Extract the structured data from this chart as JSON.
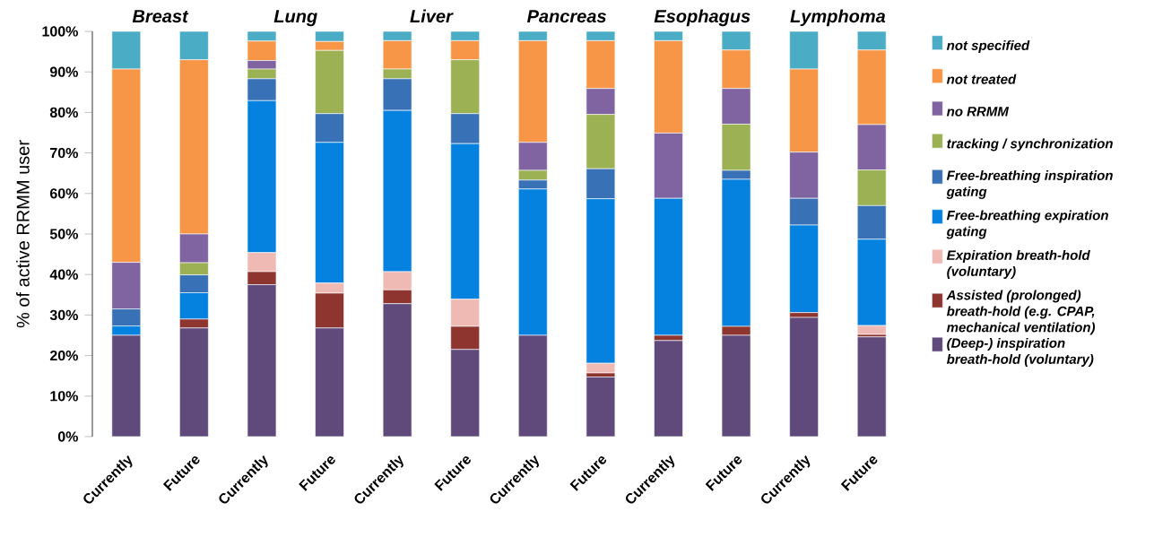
{
  "chart_data": {
    "type": "bar",
    "stacked": true,
    "categories": [
      "Currently",
      "Future",
      "Currently",
      "Future",
      "Currently",
      "Future",
      "Currently",
      "Future",
      "Currently",
      "Future",
      "Currently",
      "Future"
    ],
    "ylabel": "% of active RRMM user",
    "ylim": [
      0,
      100
    ],
    "yticks": [
      {
        "value": 0,
        "label": "0%"
      },
      {
        "value": 10,
        "label": "10%"
      },
      {
        "value": 20,
        "label": "20%"
      },
      {
        "value": 30,
        "label": "30%"
      },
      {
        "value": 40,
        "label": "40%"
      },
      {
        "value": 50,
        "label": "50%"
      },
      {
        "value": 60,
        "label": "60%"
      },
      {
        "value": 70,
        "label": "70%"
      },
      {
        "value": 80,
        "label": "80%"
      },
      {
        "value": 90,
        "label": "90%"
      },
      {
        "value": 100,
        "label": "100%"
      }
    ],
    "annotations": [
      "Breast",
      "Lung",
      "Liver",
      "Pancreas",
      "Esophagus",
      "Lymphoma"
    ],
    "grid": false,
    "legend": "right",
    "series": [
      {
        "name": "(Deep-) inspiration breath-hold (voluntary)",
        "color": "#604a7b",
        "values": [
          25,
          26.8,
          37.5,
          26.8,
          32.8,
          21.5,
          25,
          14.7,
          23.7,
          25,
          29.4,
          24.6
        ]
      },
      {
        "name": "Assisted (prolonged) breath-hold  (e.g. CPAP, mechanical ventilation)",
        "color": "#8e3530",
        "values": [
          0,
          2.2,
          3.2,
          8.6,
          3.4,
          5.7,
          0,
          1,
          1.3,
          2.2,
          1.2,
          0.6
        ]
      },
      {
        "name": "Expiration breath-hold (voluntary)",
        "color": "#efbab3",
        "values": [
          0,
          0,
          4.7,
          2.5,
          4.5,
          6.7,
          0,
          2.4,
          0,
          0,
          0,
          2.2
        ]
      },
      {
        "name": "Free-breathing expiration gating",
        "color": "#0582e0",
        "values": [
          2.3,
          6.5,
          37.5,
          34.7,
          39.8,
          38.4,
          36.1,
          40.6,
          33.8,
          36.3,
          21.6,
          21.3
        ]
      },
      {
        "name": "Free-breathing inspiration gating",
        "color": "#3871b5",
        "values": [
          4.2,
          4.4,
          5.4,
          7.1,
          7.8,
          7.4,
          2.2,
          7.4,
          0,
          2.2,
          6.6,
          8.3
        ]
      },
      {
        "name": "tracking / synchronization",
        "color": "#9bb153",
        "values": [
          0,
          3,
          2.4,
          15.6,
          2.4,
          13.3,
          2.4,
          13.4,
          0,
          11.4,
          0,
          8.8
        ]
      },
      {
        "name": "no RRMM",
        "color": "#8064a2",
        "values": [
          11.5,
          7.1,
          2.1,
          0,
          0,
          0,
          6.9,
          6.4,
          16.1,
          8.8,
          11.4,
          11.2
        ]
      },
      {
        "name": "not treated",
        "color": "#f79646",
        "values": [
          47.7,
          43,
          4.8,
          2.2,
          7,
          4.7,
          25.1,
          11.8,
          22.8,
          9.5,
          20.5,
          18.4
        ]
      },
      {
        "name": "not specified",
        "color": "#4bacc6",
        "values": [
          9.3,
          7,
          2.4,
          2.5,
          2.3,
          2.3,
          2.3,
          2.3,
          2.3,
          4.6,
          9.3,
          4.6
        ]
      }
    ]
  }
}
